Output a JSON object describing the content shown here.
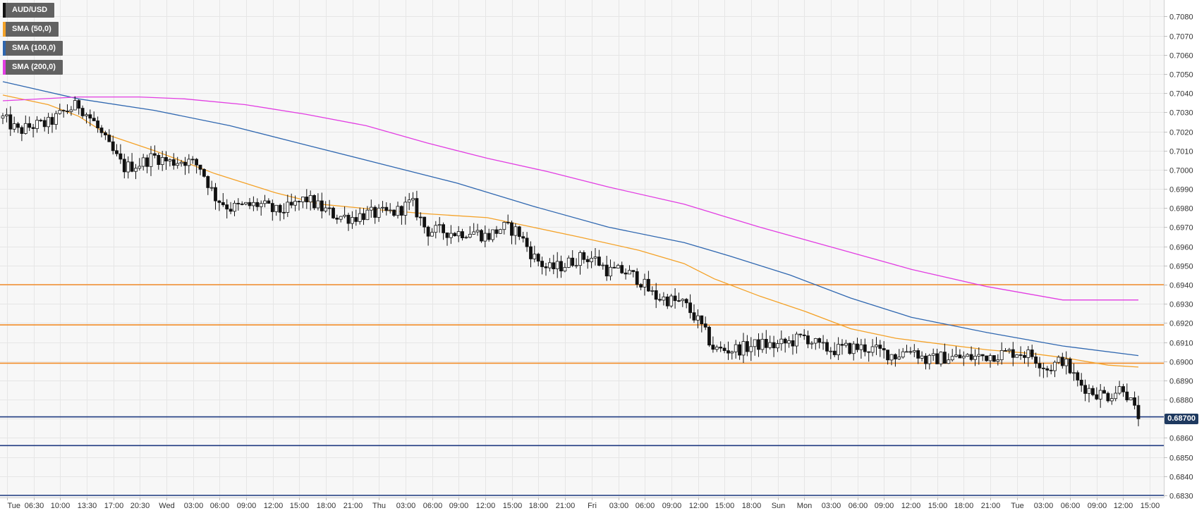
{
  "legend": [
    {
      "label": "AUD/USD",
      "color": "#111111"
    },
    {
      "label": "SMA (50,0)",
      "color": "#f4a228"
    },
    {
      "label": "SMA (100,0)",
      "color": "#2f67b0"
    },
    {
      "label": "SMA (200,0)",
      "color": "#e23de2"
    }
  ],
  "price_tag": {
    "label": "0.68700",
    "value": 0.687
  },
  "colors": {
    "background": "#f7f7f7",
    "grid": "#e6e6e6",
    "candle": "#111111",
    "level_orange": "#f28c28",
    "level_blue": "#1f3a80"
  },
  "chart_data": {
    "type": "candlestick",
    "title": "",
    "ylim": [
      0.683,
      0.7085
    ],
    "y_ticks": [
      "0.7080",
      "0.7070",
      "0.7060",
      "0.7050",
      "0.7040",
      "0.7030",
      "0.7020",
      "0.7010",
      "0.7000",
      "0.6990",
      "0.6980",
      "0.6970",
      "0.6960",
      "0.6950",
      "0.6940",
      "0.6930",
      "0.6920",
      "0.6910",
      "0.6900",
      "0.6890",
      "0.6880",
      "0.6870",
      "0.6860",
      "0.6850",
      "0.6840",
      "0.6830"
    ],
    "x_ticks": [
      "Tue",
      "06:30",
      "10:00",
      "13:30",
      "17:00",
      "20:30",
      "Wed",
      "03:00",
      "06:00",
      "09:00",
      "12:00",
      "15:00",
      "18:00",
      "21:00",
      "Thu",
      "03:00",
      "06:00",
      "09:00",
      "12:00",
      "15:00",
      "18:00",
      "21:00",
      "Fri",
      "03:00",
      "06:00",
      "09:00",
      "12:00",
      "15:00",
      "18:00",
      "Sun",
      "Mon",
      "03:00",
      "06:00",
      "09:00",
      "12:00",
      "15:00",
      "18:00",
      "21:00",
      "Tue",
      "03:00",
      "06:00",
      "09:00",
      "12:00",
      "15:00"
    ],
    "horizontal_levels": [
      {
        "value": 0.694,
        "color": "orange"
      },
      {
        "value": 0.6919,
        "color": "orange"
      },
      {
        "value": 0.6899,
        "color": "orange"
      },
      {
        "value": 0.6871,
        "color": "blue"
      },
      {
        "value": 0.6856,
        "color": "blue"
      },
      {
        "value": 0.683,
        "color": "blue"
      }
    ],
    "price_path": [
      [
        0,
        0.7027
      ],
      [
        1,
        0.702
      ],
      [
        2,
        0.7023
      ],
      [
        3,
        0.7024
      ],
      [
        4,
        0.703
      ],
      [
        5,
        0.7034
      ],
      [
        6,
        0.7025
      ],
      [
        7,
        0.7012
      ],
      [
        8,
        0.7001
      ],
      [
        9,
        0.7003
      ],
      [
        10,
        0.7007
      ],
      [
        11,
        0.7004
      ],
      [
        12,
        0.7005
      ],
      [
        13,
        0.7002
      ],
      [
        14,
        0.6986
      ],
      [
        15,
        0.698
      ],
      [
        16,
        0.6981
      ],
      [
        17,
        0.6982
      ],
      [
        18,
        0.6978
      ],
      [
        19,
        0.698
      ],
      [
        20,
        0.6985
      ],
      [
        21,
        0.698
      ],
      [
        22,
        0.6976
      ],
      [
        23,
        0.6975
      ],
      [
        24,
        0.6977
      ],
      [
        25,
        0.6977
      ],
      [
        26,
        0.6978
      ],
      [
        27,
        0.6983
      ],
      [
        28,
        0.6968
      ],
      [
        29,
        0.6968
      ],
      [
        30,
        0.6967
      ],
      [
        31,
        0.6968
      ],
      [
        32,
        0.6965
      ],
      [
        33,
        0.697
      ],
      [
        34,
        0.6968
      ],
      [
        35,
        0.6955
      ],
      [
        36,
        0.6948
      ],
      [
        37,
        0.695
      ],
      [
        38,
        0.6954
      ],
      [
        39,
        0.6954
      ],
      [
        40,
        0.6947
      ],
      [
        41,
        0.6947
      ],
      [
        42,
        0.6943
      ],
      [
        43,
        0.6934
      ],
      [
        44,
        0.6932
      ],
      [
        45,
        0.693
      ],
      [
        46,
        0.692
      ],
      [
        47,
        0.6906
      ],
      [
        48,
        0.6906
      ],
      [
        49,
        0.6907
      ],
      [
        50,
        0.6909
      ],
      [
        51,
        0.6908
      ],
      [
        52,
        0.691
      ],
      [
        53,
        0.6913
      ],
      [
        54,
        0.6907
      ],
      [
        55,
        0.6906
      ],
      [
        56,
        0.6907
      ],
      [
        57,
        0.6907
      ],
      [
        58,
        0.6905
      ],
      [
        59,
        0.6903
      ],
      [
        60,
        0.6907
      ],
      [
        61,
        0.69
      ],
      [
        62,
        0.6902
      ],
      [
        63,
        0.6902
      ],
      [
        64,
        0.6902
      ],
      [
        65,
        0.6903
      ],
      [
        66,
        0.6904
      ],
      [
        67,
        0.6905
      ],
      [
        68,
        0.6903
      ],
      [
        69,
        0.6896
      ],
      [
        70,
        0.6901
      ],
      [
        71,
        0.6889
      ],
      [
        72,
        0.6884
      ],
      [
        73,
        0.6882
      ],
      [
        74,
        0.6887
      ],
      [
        75,
        0.687
      ]
    ],
    "series": [
      {
        "name": "SMA (50,0)",
        "points": [
          [
            0,
            0.7039
          ],
          [
            3,
            0.7034
          ],
          [
            5,
            0.7028
          ],
          [
            7,
            0.7018
          ],
          [
            10,
            0.701
          ],
          [
            14,
            0.6998
          ],
          [
            18,
            0.6988
          ],
          [
            21,
            0.6982
          ],
          [
            25,
            0.6979
          ],
          [
            28,
            0.6977
          ],
          [
            32,
            0.6975
          ],
          [
            35,
            0.697
          ],
          [
            38,
            0.6965
          ],
          [
            42,
            0.6958
          ],
          [
            45,
            0.6951
          ],
          [
            47,
            0.6943
          ],
          [
            50,
            0.6934
          ],
          [
            53,
            0.6926
          ],
          [
            56,
            0.6917
          ],
          [
            59,
            0.6912
          ],
          [
            62,
            0.6909
          ],
          [
            65,
            0.6906
          ],
          [
            68,
            0.6904
          ],
          [
            70,
            0.6902
          ],
          [
            73,
            0.6898
          ],
          [
            75,
            0.6897
          ]
        ]
      },
      {
        "name": "SMA (100,0)",
        "points": [
          [
            0,
            0.7046
          ],
          [
            5,
            0.7037
          ],
          [
            10,
            0.7031
          ],
          [
            15,
            0.7023
          ],
          [
            20,
            0.7013
          ],
          [
            25,
            0.7003
          ],
          [
            30,
            0.6993
          ],
          [
            35,
            0.6981
          ],
          [
            40,
            0.697
          ],
          [
            45,
            0.6962
          ],
          [
            48,
            0.6955
          ],
          [
            52,
            0.6945
          ],
          [
            56,
            0.6933
          ],
          [
            60,
            0.6923
          ],
          [
            65,
            0.6915
          ],
          [
            70,
            0.6908
          ],
          [
            75,
            0.6903
          ]
        ]
      },
      {
        "name": "SMA (200,0)",
        "points": [
          [
            0,
            0.7036
          ],
          [
            5,
            0.7038
          ],
          [
            9,
            0.7038
          ],
          [
            12,
            0.7037
          ],
          [
            16,
            0.7034
          ],
          [
            20,
            0.7029
          ],
          [
            24,
            0.7023
          ],
          [
            28,
            0.7014
          ],
          [
            32,
            0.7006
          ],
          [
            36,
            0.6999
          ],
          [
            40,
            0.6991
          ],
          [
            45,
            0.6982
          ],
          [
            50,
            0.697
          ],
          [
            55,
            0.6959
          ],
          [
            60,
            0.6948
          ],
          [
            65,
            0.6939
          ],
          [
            70,
            0.6932
          ],
          [
            75,
            0.6932
          ]
        ]
      }
    ]
  }
}
